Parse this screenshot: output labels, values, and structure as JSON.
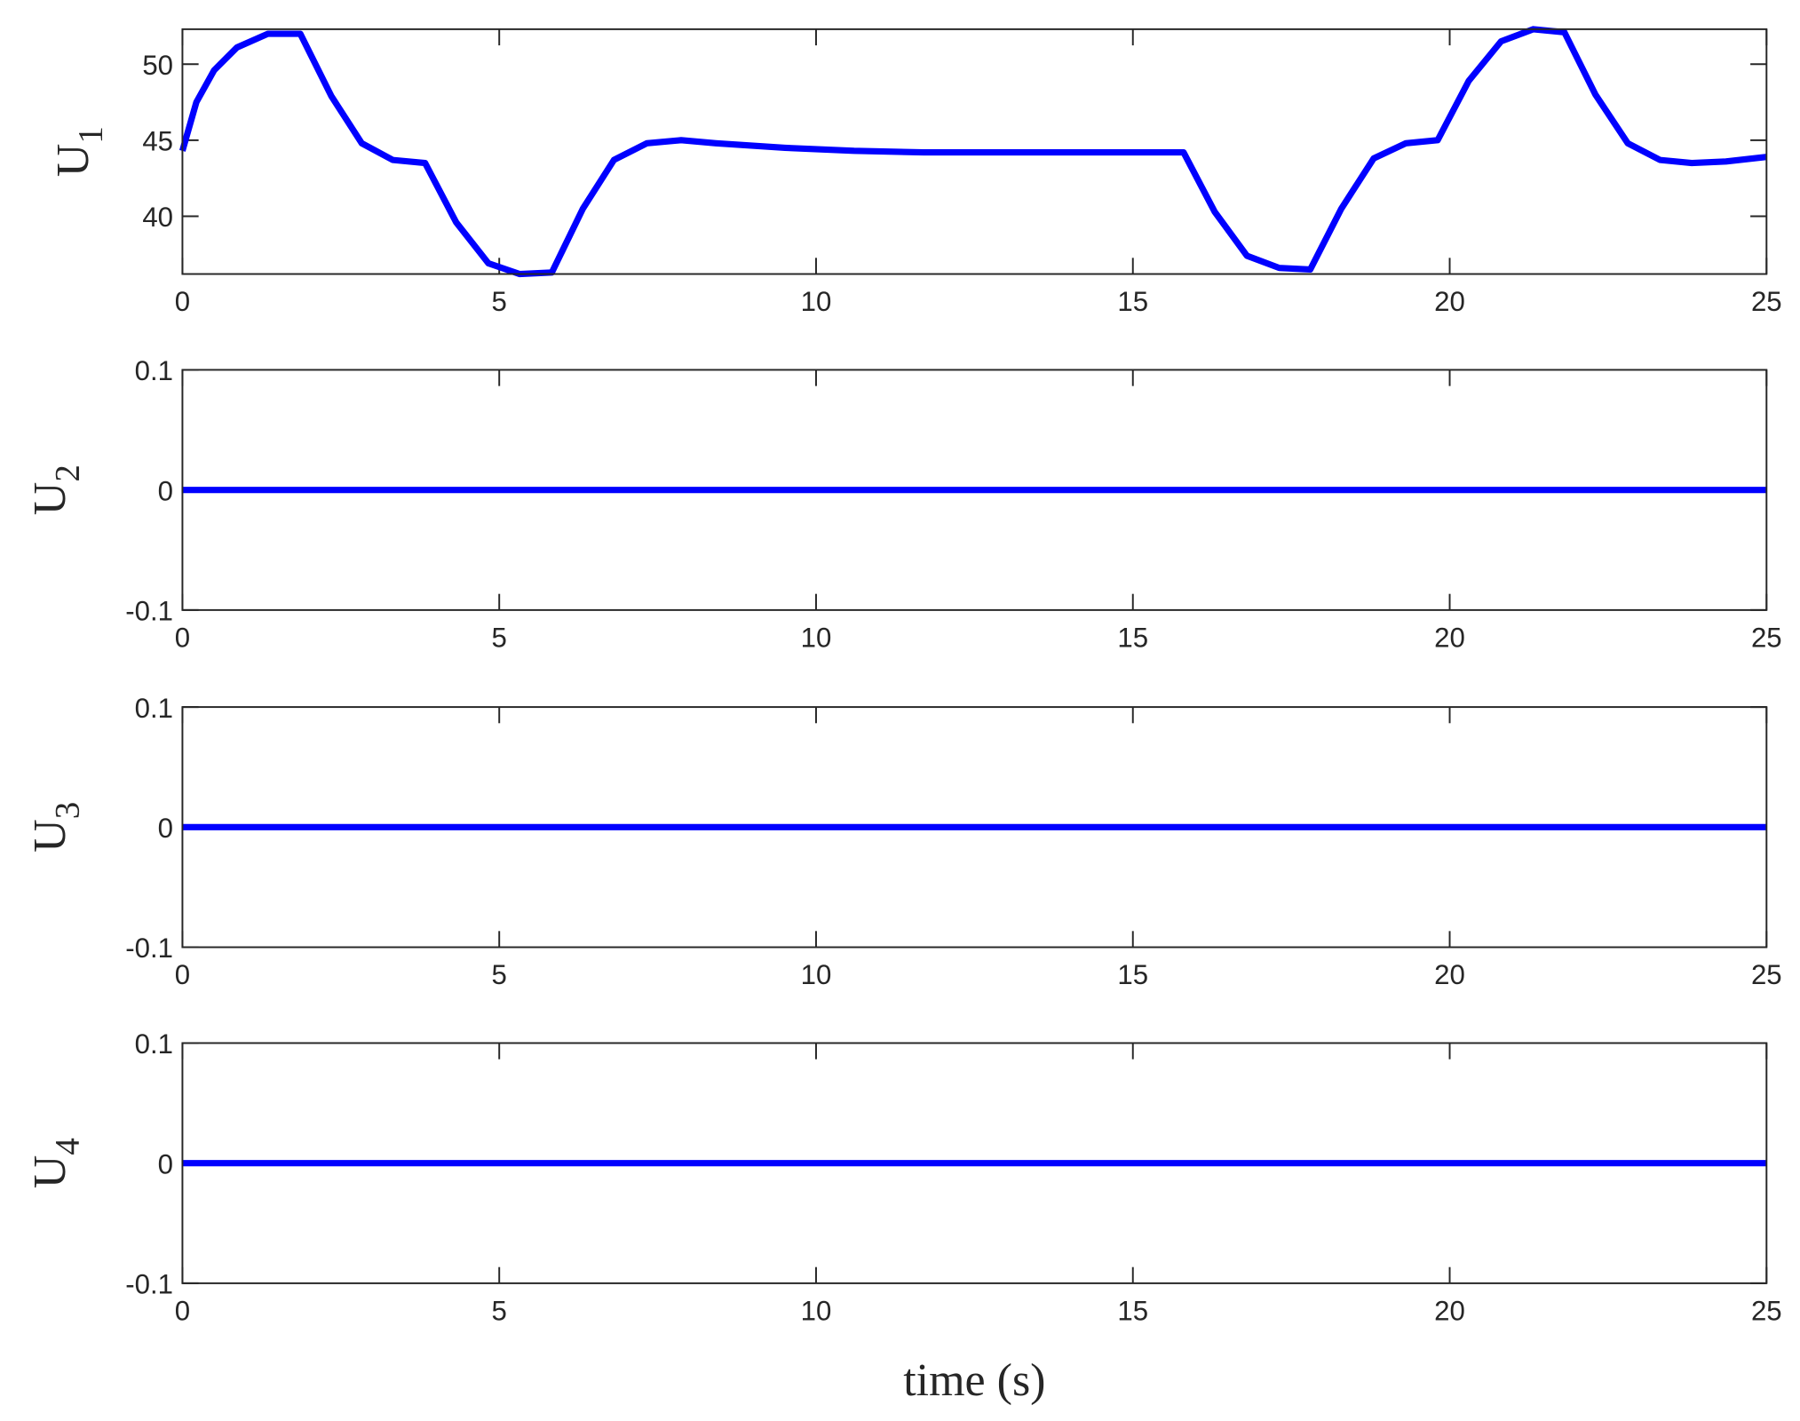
{
  "chart_data": [
    {
      "type": "line",
      "ylabel_base": "U",
      "ylabel_subscript": "1",
      "color": "#0000ff",
      "x": [
        0,
        0.22,
        0.5,
        0.86,
        1.35,
        1.86,
        2.35,
        2.83,
        3.32,
        3.83,
        4.32,
        4.83,
        5.32,
        5.83,
        6.32,
        6.81,
        7.33,
        7.87,
        8.42,
        9.51,
        10.6,
        11.7,
        15.8,
        16.29,
        16.8,
        17.31,
        17.8,
        18.29,
        18.8,
        19.31,
        19.81,
        20.3,
        20.81,
        21.32,
        21.81,
        22.3,
        22.81,
        23.32,
        23.82,
        24.36,
        25
      ],
      "values": [
        44.3,
        47.5,
        49.6,
        51.1,
        52.0,
        52.0,
        47.9,
        44.8,
        43.7,
        43.5,
        39.6,
        36.9,
        36.2,
        36.3,
        40.5,
        43.7,
        44.8,
        45.0,
        44.8,
        44.5,
        44.3,
        44.2,
        44.2,
        40.3,
        37.4,
        36.6,
        36.5,
        40.5,
        43.8,
        44.8,
        45.0,
        48.9,
        51.5,
        52.3,
        52.1,
        48.0,
        44.8,
        43.7,
        43.5,
        43.6,
        43.9
      ],
      "xlim": [
        0,
        25
      ],
      "xticks": [
        0,
        5,
        10,
        15,
        20,
        25
      ],
      "ylim": [
        36.2,
        52.3
      ],
      "yticks": [
        40,
        45,
        50
      ]
    },
    {
      "type": "line",
      "ylabel_base": "U",
      "ylabel_subscript": "2",
      "color": "#0000ff",
      "x": [
        0,
        25
      ],
      "values": [
        0,
        0
      ],
      "xlim": [
        0,
        25
      ],
      "xticks": [
        0,
        5,
        10,
        15,
        20,
        25
      ],
      "ylim": [
        -0.1,
        0.1
      ],
      "yticks": [
        -0.1,
        0,
        0.1
      ]
    },
    {
      "type": "line",
      "ylabel_base": "U",
      "ylabel_subscript": "3",
      "color": "#0000ff",
      "x": [
        0,
        25
      ],
      "values": [
        0,
        0
      ],
      "xlim": [
        0,
        25
      ],
      "xticks": [
        0,
        5,
        10,
        15,
        20,
        25
      ],
      "ylim": [
        -0.1,
        0.1
      ],
      "yticks": [
        -0.1,
        0,
        0.1
      ]
    },
    {
      "type": "line",
      "ylabel_base": "U",
      "ylabel_subscript": "4",
      "xlabel": "time (s)",
      "color": "#0000ff",
      "x": [
        0,
        25
      ],
      "values": [
        0,
        0
      ],
      "xlim": [
        0,
        25
      ],
      "xticks": [
        0,
        5,
        10,
        15,
        20,
        25
      ],
      "ylim": [
        -0.1,
        0.1
      ],
      "yticks": [
        -0.1,
        0,
        0.1
      ]
    }
  ]
}
